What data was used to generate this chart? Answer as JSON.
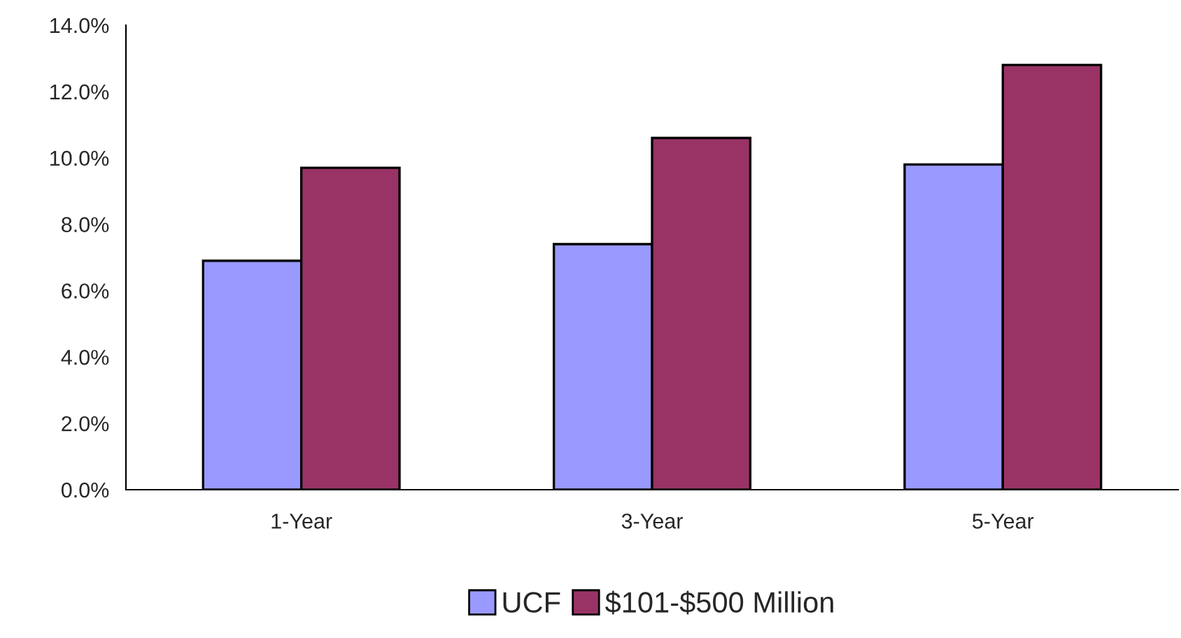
{
  "chart_data": {
    "type": "bar",
    "categories": [
      "1-Year",
      "3-Year",
      "5-Year"
    ],
    "series": [
      {
        "name": "UCF",
        "color": "#9999ff",
        "values": [
          6.9,
          7.4,
          9.8
        ]
      },
      {
        "name": "$101-$500 Million",
        "color": "#993366",
        "values": [
          9.7,
          10.6,
          12.8
        ]
      }
    ],
    "ylim": [
      0,
      14
    ],
    "yticks": [
      {
        "value": 0,
        "label": "0.0%"
      },
      {
        "value": 2,
        "label": "2.0%"
      },
      {
        "value": 4,
        "label": "4.0%"
      },
      {
        "value": 6,
        "label": "6.0%"
      },
      {
        "value": 8,
        "label": "8.0%"
      },
      {
        "value": 10,
        "label": "10.0%"
      },
      {
        "value": 12,
        "label": "12.0%"
      },
      {
        "value": 14,
        "label": "14.0%"
      }
    ],
    "grid": false,
    "legend": "bottom"
  }
}
